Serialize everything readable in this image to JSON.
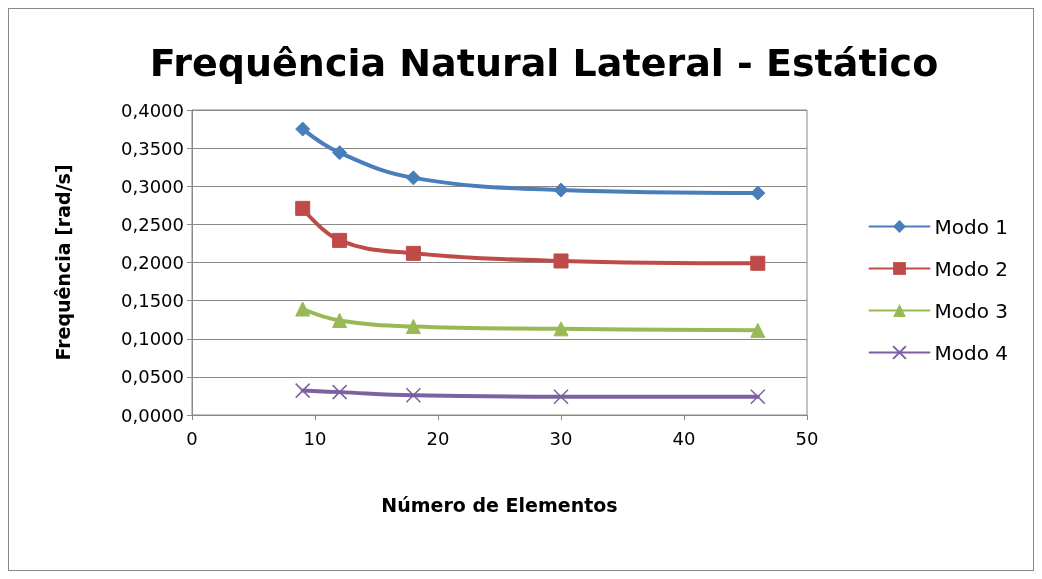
{
  "chart_data": {
    "type": "line",
    "title": "Frequência Natural Lateral - Estático",
    "xlabel": "Número de Elementos",
    "ylabel": "Frequência [rad/s]",
    "x": [
      9,
      12,
      18,
      30,
      46
    ],
    "series": [
      {
        "name": "Modo 1",
        "color": "#4a7ebb",
        "marker": "diamond",
        "values": [
          0.375,
          0.344,
          0.311,
          0.295,
          0.291
        ]
      },
      {
        "name": "Modo 2",
        "color": "#be4b48",
        "marker": "square",
        "values": [
          0.271,
          0.229,
          0.212,
          0.202,
          0.199
        ]
      },
      {
        "name": "Modo 3",
        "color": "#98b954",
        "marker": "triangle",
        "values": [
          0.139,
          0.124,
          0.116,
          0.113,
          0.111
        ]
      },
      {
        "name": "Modo 4",
        "color": "#7d60a0",
        "marker": "cross",
        "values": [
          0.032,
          0.03,
          0.026,
          0.024,
          0.024
        ]
      }
    ],
    "xlim": [
      0,
      50
    ],
    "xticks": [
      0,
      10,
      20,
      30,
      40,
      50
    ],
    "ylim": [
      0,
      0.4
    ],
    "yticks": [
      {
        "value": 0,
        "label": "0,0000"
      },
      {
        "value": 0.05,
        "label": "0,0500"
      },
      {
        "value": 0.1,
        "label": "0,1000"
      },
      {
        "value": 0.15,
        "label": "0,1500"
      },
      {
        "value": 0.2,
        "label": "0,2000"
      },
      {
        "value": 0.25,
        "label": "0,2500"
      },
      {
        "value": 0.3,
        "label": "0,3000"
      },
      {
        "value": 0.35,
        "label": "0,3500"
      },
      {
        "value": 0.4,
        "label": "0,4000"
      }
    ],
    "grid": "y",
    "legend": "right",
    "line_style": "solid"
  }
}
